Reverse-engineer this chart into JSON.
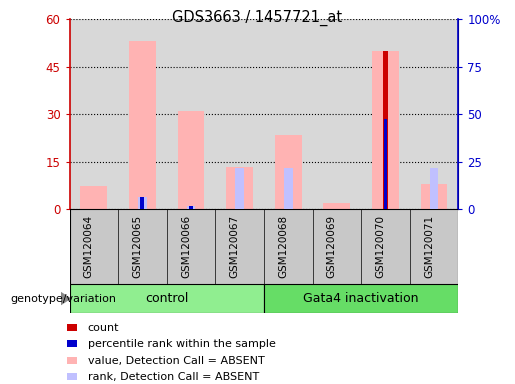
{
  "title": "GDS3663 / 1457721_at",
  "samples": [
    "GSM120064",
    "GSM120065",
    "GSM120066",
    "GSM120067",
    "GSM120068",
    "GSM120069",
    "GSM120070",
    "GSM120071"
  ],
  "group_labels": [
    "control",
    "Gata4 inactivation"
  ],
  "pink_bars": [
    7.5,
    53.0,
    31.0,
    13.5,
    23.5,
    2.0,
    50.0,
    8.0
  ],
  "light_blue_bars": [
    0.0,
    4.0,
    1.0,
    13.0,
    13.0,
    0.0,
    0.0,
    13.0
  ],
  "red_bars": [
    0.0,
    0.0,
    0.0,
    0.0,
    0.0,
    0.0,
    50.0,
    0.0
  ],
  "blue_bars": [
    0.0,
    4.0,
    1.0,
    0.0,
    0.0,
    0.0,
    28.5,
    0.0
  ],
  "ylim_left": [
    0,
    60
  ],
  "ylim_right": [
    0,
    100
  ],
  "yticks_left": [
    0,
    15,
    30,
    45,
    60
  ],
  "ytick_labels_left": [
    "0",
    "15",
    "30",
    "45",
    "60"
  ],
  "yticks_right": [
    0,
    25,
    50,
    75,
    100
  ],
  "ytick_labels_right": [
    "0",
    "25",
    "50",
    "75",
    "100%"
  ],
  "left_axis_color": "#cc0000",
  "right_axis_color": "#0000cc",
  "pink_color": "#ffb3b3",
  "light_blue_color": "#c0c0ff",
  "red_color": "#cc0000",
  "blue_color": "#0000cc",
  "plot_bg_color": "#d8d8d8",
  "xtick_bg_color": "#c8c8c8",
  "control_color": "#90ee90",
  "gata4_color": "#66dd66",
  "legend_items": [
    {
      "label": "count",
      "color": "#cc0000"
    },
    {
      "label": "percentile rank within the sample",
      "color": "#0000cc"
    },
    {
      "label": "value, Detection Call = ABSENT",
      "color": "#ffb3b3"
    },
    {
      "label": "rank, Detection Call = ABSENT",
      "color": "#c0c0ff"
    }
  ]
}
